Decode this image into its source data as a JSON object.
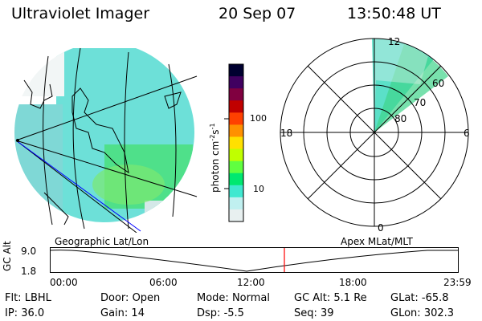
{
  "header": {
    "title": "Ultraviolet Imager",
    "date": "20 Sep 07",
    "time": "13:50:48 UT"
  },
  "panels": {
    "left_label": "Geographic Lat/Lon",
    "right_label": "Apex MLat/MLT"
  },
  "colorbar": {
    "unit_main": "photon cm",
    "unit_exp1": "-2",
    "unit_mid": "s",
    "unit_exp2": "-1",
    "ticks": [
      "100",
      "10"
    ],
    "colors_top_to_bottom": [
      "#000030",
      "#400060",
      "#800040",
      "#c00000",
      "#ff4000",
      "#ff9000",
      "#ffe000",
      "#c0ff00",
      "#60ff40",
      "#00e870",
      "#40e8d0",
      "#c0f0f0",
      "#e8f0f0"
    ]
  },
  "polar": {
    "mlt_labels": [
      "12",
      "18",
      "6",
      "0"
    ],
    "mlat_labels": [
      "60",
      "70",
      "80"
    ]
  },
  "timeline": {
    "y_label": "GC Alt",
    "y_ticks": [
      "9.0",
      "1.8"
    ],
    "x_ticks": [
      "00:00",
      "06:00",
      "12:00",
      "18:00",
      "23:59"
    ],
    "current_time_marker": "13:50:48",
    "marker_color": "#ff0000"
  },
  "status": {
    "row1": [
      {
        "key": "Flt:",
        "value": "LBHL"
      },
      {
        "key": "Door:",
        "value": "Open"
      },
      {
        "key": "Mode:",
        "value": "Normal"
      },
      {
        "key": "GC Alt:",
        "value": "5.1 Re"
      },
      {
        "key": "GLat:",
        "value": "-65.8"
      }
    ],
    "row2": [
      {
        "key": "IP:",
        "value": "36.0"
      },
      {
        "key": "Gain:",
        "value": "14"
      },
      {
        "key": "Dsp:",
        "value": "-5.5"
      },
      {
        "key": "Seq:",
        "value": "39"
      },
      {
        "key": "GLon:",
        "value": "302.3"
      }
    ]
  }
}
